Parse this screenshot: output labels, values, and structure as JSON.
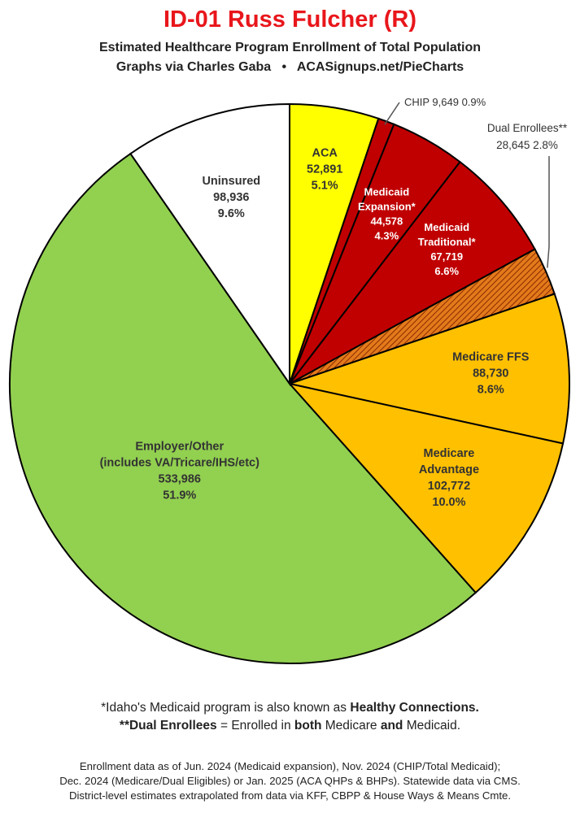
{
  "title": "ID-01 Russ Fulcher (R)",
  "subtitle1": "Estimated Healthcare Program Enrollment of Total Population",
  "subtitle2": "Graphs via Charles Gaba   •   ACASignups.net/PieCharts",
  "colors": {
    "title": "#e8161b",
    "aca": "#ffff00",
    "medicaid": "#c00000",
    "dual": "#e37a1b",
    "medicare": "#ffc000",
    "employer": "#92d050",
    "uninsured": "#ffffff"
  },
  "chart_data": {
    "type": "pie",
    "start": "12 o'clock, clockwise",
    "slices": [
      {
        "name": "ACA",
        "value": 52891,
        "percent": "5.1%",
        "value_label": "52,891",
        "color": "#ffff00",
        "label_lines": [
          "ACA",
          "52,891",
          "5.1%"
        ]
      },
      {
        "name": "CHIP",
        "value": 9649,
        "percent": "0.9%",
        "value_label": "9,649",
        "color": "#c00000",
        "label_lines": [
          "CHIP 9,649 0.9%"
        ],
        "callout": true
      },
      {
        "name": "Medicaid Expansion*",
        "value": 44578,
        "percent": "4.3%",
        "value_label": "44,578",
        "color": "#c00000",
        "label_lines": [
          "Medicaid",
          "Expansion*",
          "44,578",
          "4.3%"
        ]
      },
      {
        "name": "Medicaid Traditional*",
        "value": 67719,
        "percent": "6.6%",
        "value_label": "67,719",
        "color": "#c00000",
        "label_lines": [
          "Medicaid",
          "Traditional*",
          "67,719",
          "6.6%"
        ]
      },
      {
        "name": "Dual Enrollees**",
        "value": 28645,
        "percent": "2.8%",
        "value_label": "28,645",
        "color": "#e37a1b",
        "hatched": true,
        "label_lines": [
          "Dual Enrollees**",
          "28,645 2.8%"
        ],
        "callout": true
      },
      {
        "name": "Medicare FFS",
        "value": 88730,
        "percent": "8.6%",
        "value_label": "88,730",
        "color": "#ffc000",
        "label_lines": [
          "Medicare FFS",
          "88,730",
          "8.6%"
        ]
      },
      {
        "name": "Medicare Advantage",
        "value": 102772,
        "percent": "10.0%",
        "value_label": "102,772",
        "color": "#ffc000",
        "label_lines": [
          "Medicare",
          "Advantage",
          "102,772",
          "10.0%"
        ]
      },
      {
        "name": "Employer/Other",
        "value": 533986,
        "percent": "51.9%",
        "value_label": "533,986",
        "color": "#92d050",
        "label_lines": [
          "Employer/Other",
          "(includes VA/Tricare/IHS/etc)",
          "533,986",
          "51.9%"
        ]
      },
      {
        "name": "Uninsured",
        "value": 98936,
        "percent": "9.6%",
        "value_label": "98,936",
        "color": "#ffffff",
        "label_lines": [
          "Uninsured",
          "98,936",
          "9.6%"
        ]
      }
    ]
  },
  "footnotes": {
    "line1_pre": "*Idaho's Medicaid program is also known as ",
    "line1_bold": "Healthy Connections.",
    "line2_b1": "**Dual Enrollees",
    "line2_t1": " = Enrolled in ",
    "line2_b2": "both",
    "line2_t2": " Medicare ",
    "line2_b3": "and",
    "line2_t3": " Medicaid."
  },
  "sources": {
    "line1": "Enrollment data as of Jun. 2024 (Medicaid expansion), Nov. 2024 (CHIP/Total Medicaid);",
    "line2": "Dec. 2024 (Medicare/Dual Eligibles) or Jan. 2025 (ACA QHPs & BHPs). Statewide data via CMS.",
    "line3": "District-level estimates extrapolated from data via KFF, CBPP & House Ways & Means Cmte."
  }
}
